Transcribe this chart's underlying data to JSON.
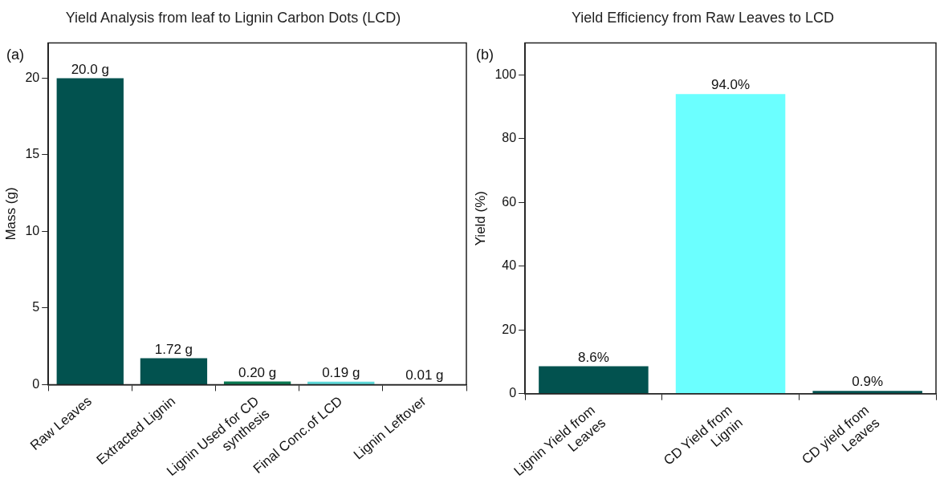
{
  "chart_data": [
    {
      "type": "bar",
      "title": "Yield Analysis from leaf to Lignin Carbon Dots (LCD)",
      "ylabel": "Mass (g)",
      "categories": [
        "Raw Leaves",
        "Extracted Lignin",
        "Lignin Used for CD\nsynthesis",
        "Final Conc.of LCD",
        "Lignin Leftover"
      ],
      "values": [
        20.0,
        1.72,
        0.2,
        0.19,
        0.01
      ],
      "colors": [
        "#02524f",
        "#02524f",
        "#0a7a52",
        "#5ed8d8",
        "#02524f"
      ],
      "value_labels": [
        "20.0 g",
        "1.72 g",
        "0.20 g",
        "0.19 g",
        "0.01 g"
      ],
      "ylim": [
        0,
        22.3
      ],
      "yticks": [
        0,
        5,
        10,
        15,
        20
      ],
      "annotations": [
        "(a)"
      ],
      "grid": false,
      "legend": false
    },
    {
      "type": "bar",
      "title": "Yield Efficiency from Raw Leaves to LCD",
      "ylabel": "Yield (%)",
      "categories": [
        "Lignin Yield from\nLeaves",
        "CD Yield from\nLignin",
        "CD yield from\nLeaves"
      ],
      "values": [
        8.6,
        94.0,
        0.9
      ],
      "colors": [
        "#02524f",
        "#6bffff",
        "#02524f"
      ],
      "value_labels": [
        "8.6%",
        "94.0%",
        "0.9%"
      ],
      "ylim": [
        0,
        110
      ],
      "yticks": [
        0,
        20,
        40,
        60,
        80,
        100
      ],
      "annotations": [
        "(b)"
      ],
      "grid": false,
      "legend": false
    }
  ]
}
